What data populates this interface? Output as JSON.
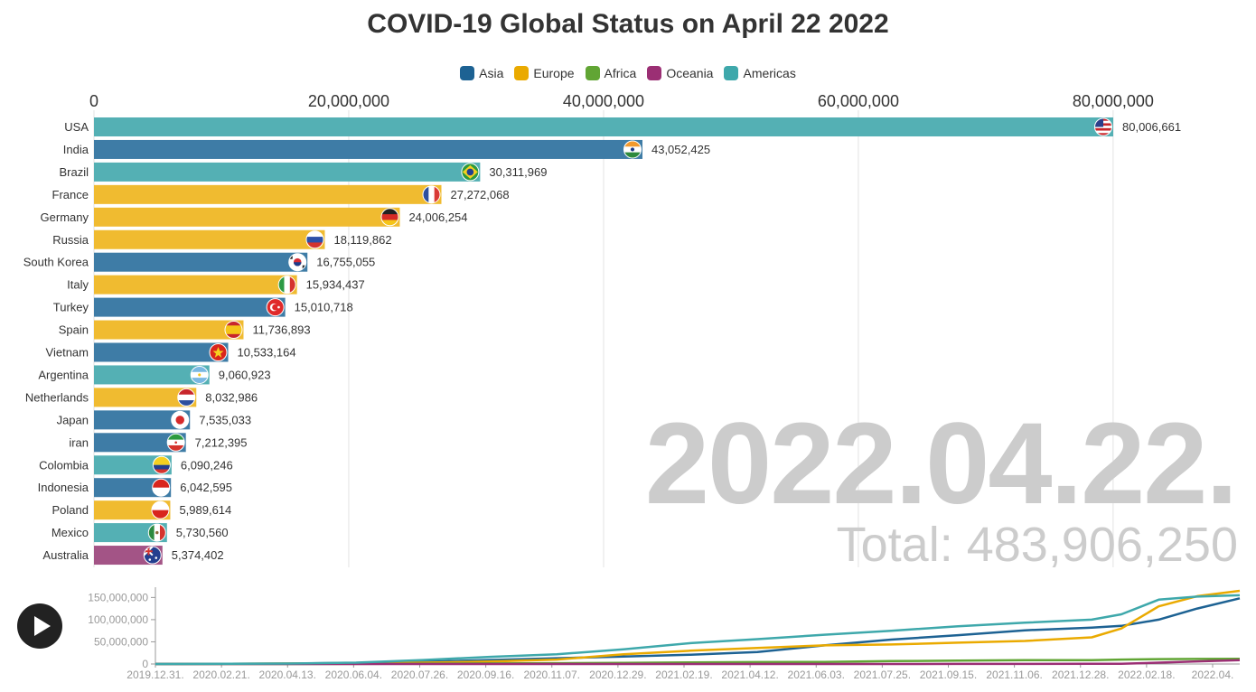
{
  "title": "COVID-19 Global Status on April 22 2022",
  "big_date": "2022.04.22.",
  "total_text": "Total: 483,906,250",
  "colors": {
    "Asia": "#3e7ca6",
    "Europe": "#f0bb30",
    "Africa": "#6aab42",
    "Oceania": "#a35486",
    "Americas": "#54b0b4",
    "legend_Asia": "#1d6293",
    "legend_Europe": "#eaaa00",
    "legend_Africa": "#61a534",
    "legend_Oceania": "#9b2f74",
    "legend_Americas": "#3ea8ab"
  },
  "legend": [
    "Asia",
    "Europe",
    "Africa",
    "Oceania",
    "Americas"
  ],
  "chart_data": [
    {
      "type": "bar",
      "title": "COVID-19 Global Status on April 22 2022",
      "orientation": "horizontal",
      "xlim": [
        0,
        80006661
      ],
      "x_ticks": [
        "0",
        "20,000,000",
        "40,000,000",
        "60,000,000",
        "80,000,000"
      ],
      "x_tick_values": [
        0,
        20000000,
        40000000,
        60000000,
        80000000
      ],
      "grid": true,
      "legend_position": "top-center",
      "categories": [
        "USA",
        "India",
        "Brazil",
        "France",
        "Germany",
        "Russia",
        "South Korea",
        "Italy",
        "Turkey",
        "Spain",
        "Vietnam",
        "Argentina",
        "Netherlands",
        "Japan",
        "iran",
        "Colombia",
        "Indonesia",
        "Poland",
        "Mexico",
        "Australia"
      ],
      "values": [
        80006661,
        43052425,
        30311969,
        27272068,
        24006254,
        18119862,
        16755055,
        15934437,
        15010718,
        11736893,
        10533164,
        9060923,
        8032986,
        7535033,
        7212395,
        6090246,
        6042595,
        5989614,
        5730560,
        5374402
      ],
      "value_labels": [
        "80,006,661",
        "43,052,425",
        "30,311,969",
        "27,272,068",
        "24,006,254",
        "18,119,862",
        "16,755,055",
        "15,934,437",
        "15,010,718",
        "11,736,893",
        "10,533,164",
        "9,060,923",
        "8,032,986",
        "7,535,033",
        "7,212,395",
        "6,090,246",
        "6,042,595",
        "5,989,614",
        "5,730,560",
        "5,374,402"
      ],
      "regions": [
        "Americas",
        "Asia",
        "Americas",
        "Europe",
        "Europe",
        "Europe",
        "Asia",
        "Europe",
        "Asia",
        "Europe",
        "Asia",
        "Americas",
        "Europe",
        "Asia",
        "Asia",
        "Americas",
        "Asia",
        "Europe",
        "Americas",
        "Oceania"
      ],
      "flag_icons": [
        "usa-flag-icon",
        "india-flag-icon",
        "brazil-flag-icon",
        "france-flag-icon",
        "germany-flag-icon",
        "russia-flag-icon",
        "south-korea-flag-icon",
        "italy-flag-icon",
        "turkey-flag-icon",
        "spain-flag-icon",
        "vietnam-flag-icon",
        "argentina-flag-icon",
        "netherlands-flag-icon",
        "japan-flag-icon",
        "iran-flag-icon",
        "colombia-flag-icon",
        "indonesia-flag-icon",
        "poland-flag-icon",
        "mexico-flag-icon",
        "australia-flag-icon"
      ]
    },
    {
      "type": "line",
      "ylim": [
        0,
        165000000
      ],
      "y_ticks": [
        "0",
        "50,000,000",
        "100,000,000",
        "150,000,000"
      ],
      "y_tick_values": [
        0,
        50000000,
        100000000,
        150000000
      ],
      "x_ticks": [
        "2019.12.31.",
        "2020.02.21.",
        "2020.04.13.",
        "2020.06.04.",
        "2020.07.26.",
        "2020.09.16.",
        "2020.11.07.",
        "2020.12.29.",
        "2021.02.19.",
        "2021.04.12.",
        "2021.06.03.",
        "2021.07.25.",
        "2021.09.15.",
        "2021.11.06.",
        "2021.12.28.",
        "2022.02.18.",
        "2022.04."
      ],
      "x": [
        "2019.12.31",
        "2020.04.13",
        "2020.06.04",
        "2020.07.26",
        "2020.09.16",
        "2020.11.07",
        "2020.12.29",
        "2021.02.19",
        "2021.04.12",
        "2021.06.03",
        "2021.07.25",
        "2021.09.15",
        "2021.11.06",
        "2021.12.28",
        "2022.01.20",
        "2022.02.18",
        "2022.03.20",
        "2022.04.22"
      ],
      "series": [
        {
          "name": "Asia",
          "values": [
            0,
            1000000,
            2500000,
            5000000,
            9000000,
            13000000,
            17000000,
            21000000,
            27000000,
            42000000,
            55000000,
            65000000,
            76000000,
            82000000,
            86000000,
            100000000,
            125000000,
            148000000
          ]
        },
        {
          "name": "Europe",
          "values": [
            0,
            1000000,
            2000000,
            3000000,
            5500000,
            10000000,
            22000000,
            30000000,
            36000000,
            42000000,
            44000000,
            48000000,
            52000000,
            60000000,
            80000000,
            130000000,
            153000000,
            165000000
          ]
        },
        {
          "name": "Africa",
          "values": [
            0,
            0,
            200000,
            800000,
            1300000,
            1800000,
            2600000,
            3600000,
            4300000,
            4700000,
            6500000,
            7500000,
            8500000,
            8800000,
            10000000,
            11000000,
            11400000,
            11600000
          ]
        },
        {
          "name": "Oceania",
          "values": [
            0,
            0,
            0,
            0,
            0,
            0,
            100000,
            100000,
            100000,
            100000,
            100000,
            200000,
            300000,
            400000,
            700000,
            3000000,
            6000000,
            8500000
          ]
        },
        {
          "name": "Americas",
          "values": [
            0,
            1000000,
            3000000,
            9000000,
            16000000,
            22000000,
            33000000,
            47000000,
            56000000,
            66000000,
            75000000,
            85000000,
            93000000,
            100000000,
            112000000,
            145000000,
            152000000,
            155000000
          ]
        }
      ]
    }
  ]
}
